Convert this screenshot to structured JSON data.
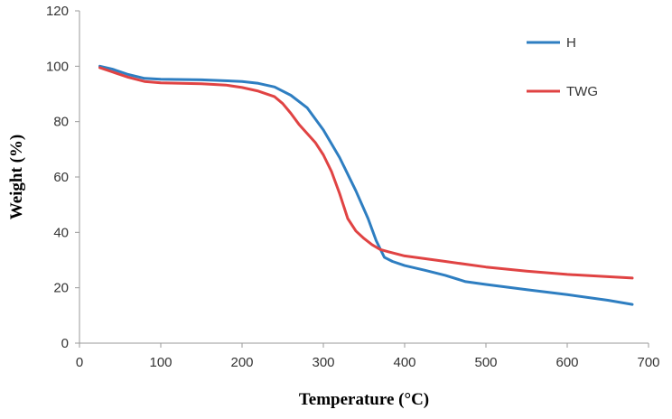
{
  "chart_data": {
    "type": "line",
    "title": "",
    "xlabel": "Temperature (°C)",
    "ylabel": "Weight (%)",
    "xlim": [
      0,
      700
    ],
    "ylim": [
      0,
      120
    ],
    "x_ticks": [
      "0",
      "100",
      "200",
      "300",
      "400",
      "500",
      "600",
      "700"
    ],
    "y_ticks": [
      "0",
      "20",
      "40",
      "60",
      "80",
      "100",
      "120"
    ],
    "grid": false,
    "legend_position": "top-right",
    "series": [
      {
        "name": "H",
        "color": "#2E7EC1",
        "points": [
          [
            25,
            100
          ],
          [
            40,
            99
          ],
          [
            60,
            97
          ],
          [
            80,
            95.6
          ],
          [
            100,
            95.3
          ],
          [
            150,
            95.1
          ],
          [
            200,
            94.5
          ],
          [
            220,
            93.8
          ],
          [
            240,
            92.5
          ],
          [
            260,
            89.5
          ],
          [
            280,
            85
          ],
          [
            300,
            77
          ],
          [
            320,
            67
          ],
          [
            340,
            55
          ],
          [
            355,
            45
          ],
          [
            365,
            37
          ],
          [
            375,
            31
          ],
          [
            385,
            29.5
          ],
          [
            400,
            28
          ],
          [
            425,
            26.3
          ],
          [
            450,
            24.5
          ],
          [
            475,
            22.2
          ],
          [
            500,
            21.2
          ],
          [
            550,
            19.3
          ],
          [
            600,
            17.5
          ],
          [
            650,
            15.5
          ],
          [
            680,
            14
          ]
        ]
      },
      {
        "name": "TWG",
        "color": "#E04343",
        "points": [
          [
            25,
            99.5
          ],
          [
            40,
            98
          ],
          [
            60,
            96
          ],
          [
            80,
            94.5
          ],
          [
            100,
            94
          ],
          [
            150,
            93.7
          ],
          [
            180,
            93.2
          ],
          [
            200,
            92.3
          ],
          [
            220,
            91
          ],
          [
            240,
            89
          ],
          [
            250,
            86.5
          ],
          [
            260,
            83
          ],
          [
            270,
            79
          ],
          [
            290,
            72.5
          ],
          [
            300,
            68
          ],
          [
            310,
            62
          ],
          [
            320,
            54
          ],
          [
            330,
            45
          ],
          [
            340,
            40.5
          ],
          [
            350,
            37.8
          ],
          [
            360,
            35.5
          ],
          [
            370,
            33.8
          ],
          [
            380,
            33
          ],
          [
            400,
            31.5
          ],
          [
            450,
            29.5
          ],
          [
            500,
            27.5
          ],
          [
            550,
            26
          ],
          [
            600,
            24.8
          ],
          [
            650,
            24
          ],
          [
            680,
            23.5
          ]
        ]
      }
    ]
  }
}
